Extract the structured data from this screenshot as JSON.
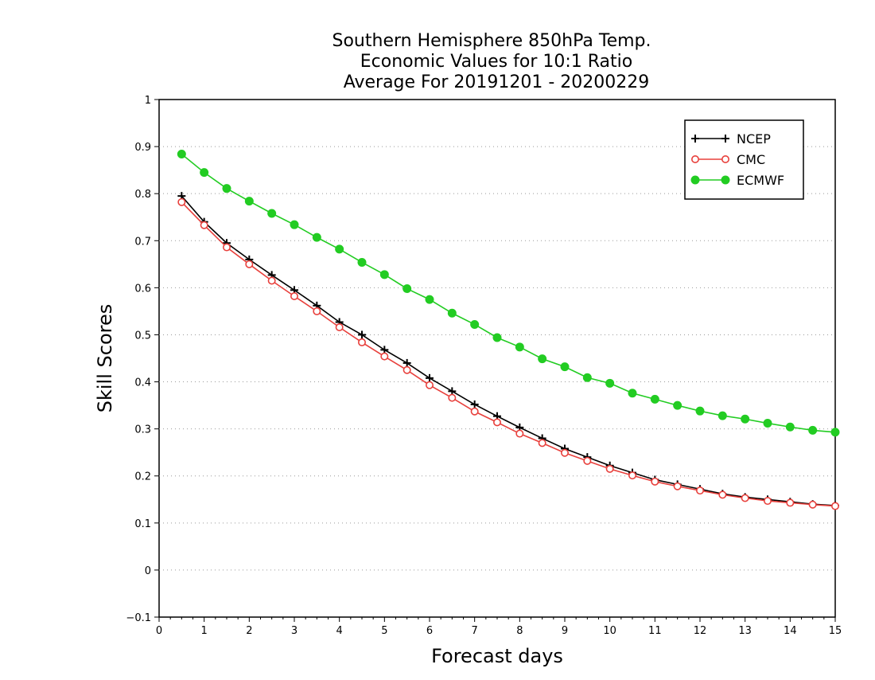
{
  "chart_data": {
    "type": "line",
    "title_lines": [
      "Southern Hemisphere 850hPa Temp.",
      "Economic Values for 10:1 Ratio",
      "Average For 20191201 - 20200229"
    ],
    "xlabel": "Forecast days",
    "ylabel": "Skill Scores",
    "xlim": [
      0,
      15
    ],
    "ylim": [
      -0.1,
      1
    ],
    "x_ticks": [
      "0",
      "1",
      "2",
      "3",
      "4",
      "5",
      "6",
      "7",
      "8",
      "9",
      "10",
      "11",
      "12",
      "13",
      "14",
      "15"
    ],
    "y_ticks": [
      "−0.1",
      "0",
      "0.1",
      "0.2",
      "0.3",
      "0.4",
      "0.5",
      "0.6",
      "0.7",
      "0.8",
      "0.9",
      "1"
    ],
    "grid": "horizontal dotted",
    "legend_position": "top-right",
    "x": [
      0.5,
      1,
      1.5,
      2,
      2.5,
      3,
      3.5,
      4,
      4.5,
      5,
      5.5,
      6,
      6.5,
      7,
      7.5,
      8,
      8.5,
      9,
      9.5,
      10,
      10.5,
      11,
      11.5,
      12,
      12.5,
      13,
      13.5,
      14,
      14.5,
      15
    ],
    "series": [
      {
        "name": "NCEP",
        "color": "#000000",
        "marker": "plus",
        "values": [
          0.795,
          0.74,
          0.695,
          0.66,
          0.627,
          0.595,
          0.562,
          0.527,
          0.5,
          0.468,
          0.44,
          0.408,
          0.38,
          0.352,
          0.327,
          0.303,
          0.28,
          0.258,
          0.24,
          0.222,
          0.207,
          0.192,
          0.182,
          0.172,
          0.162,
          0.155,
          0.15,
          0.145,
          0.14,
          0.137
        ]
      },
      {
        "name": "CMC",
        "color": "#e8403c",
        "marker": "open-circle",
        "values": [
          0.782,
          0.733,
          0.686,
          0.65,
          0.615,
          0.582,
          0.55,
          0.516,
          0.484,
          0.454,
          0.425,
          0.393,
          0.366,
          0.337,
          0.314,
          0.29,
          0.27,
          0.249,
          0.232,
          0.215,
          0.201,
          0.188,
          0.178,
          0.169,
          0.16,
          0.153,
          0.147,
          0.143,
          0.139,
          0.136
        ]
      },
      {
        "name": "ECMWF",
        "color": "#22cc22",
        "marker": "filled-circle",
        "values": [
          0.884,
          0.845,
          0.811,
          0.784,
          0.758,
          0.734,
          0.707,
          0.682,
          0.654,
          0.628,
          0.598,
          0.575,
          0.546,
          0.522,
          0.494,
          0.474,
          0.449,
          0.432,
          0.409,
          0.397,
          0.376,
          0.363,
          0.35,
          0.338,
          0.328,
          0.321,
          0.312,
          0.304,
          0.297,
          0.293
        ]
      }
    ]
  }
}
